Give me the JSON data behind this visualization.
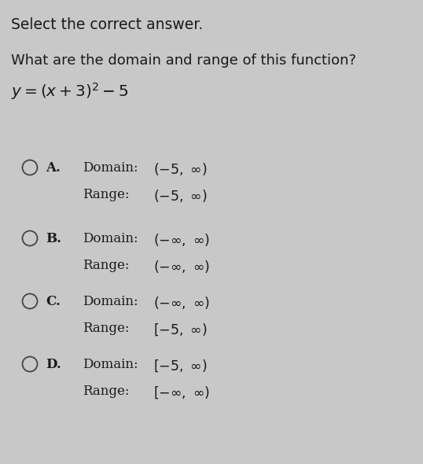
{
  "bg_color": "#c8c8c8",
  "text_color": "#1a1a1a",
  "title": "Select the correct answer.",
  "question": "What are the domain and range of this function?",
  "function_text": "$y = (x + 3)^2 - 5$",
  "options": [
    {
      "label": "A.",
      "domain": "$(-5,\\ \\infty)$",
      "range": "$(-5,\\ \\infty)$"
    },
    {
      "label": "B.",
      "domain": "$(-\\infty,\\ \\infty)$",
      "range": "$(-\\infty,\\ \\infty)$"
    },
    {
      "label": "C.",
      "domain": "$(-\\infty,\\ \\infty)$",
      "range": "$[-5,\\ \\infty)$"
    },
    {
      "label": "D.",
      "domain": "$[-5,\\ \\infty)$",
      "range": "$[-\\infty,\\ \\infty)$"
    }
  ],
  "figsize": [
    5.38,
    5.9
  ],
  "dpi": 100
}
